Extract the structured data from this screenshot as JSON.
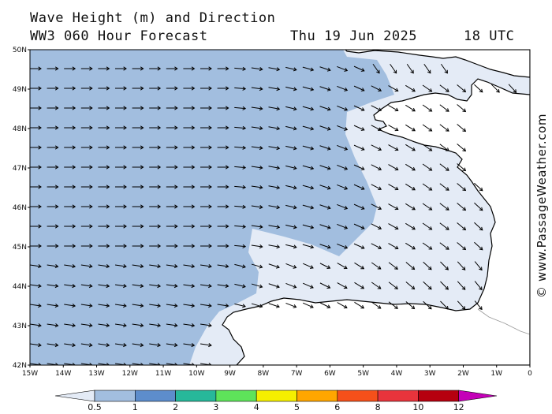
{
  "header": {
    "title": "Wave Height (m) and Direction",
    "subtitle": "WW3 060 Hour Forecast",
    "date": "Thu 19 Jun 2025",
    "time": "18 UTC"
  },
  "credit": "© www.PassageWeather.com",
  "axes": {
    "lat_labels": [
      "50N",
      "49N",
      "48N",
      "47N",
      "46N",
      "45N",
      "44N",
      "43N",
      "42N"
    ],
    "lon_labels": [
      "15W",
      "14W",
      "13W",
      "12W",
      "11W",
      "10W",
      "9W",
      "8W",
      "7W",
      "6W",
      "5W",
      "4W",
      "3W",
      "2W",
      "1W",
      "0"
    ],
    "lat_range": [
      42,
      50
    ],
    "lon_range": [
      -15,
      0
    ]
  },
  "legend": {
    "ticks": [
      "0.5",
      "1",
      "2",
      "3",
      "4",
      "5",
      "6",
      "8",
      "10",
      "12"
    ],
    "colors": [
      "#e4ebf6",
      "#a2bedf",
      "#5d8dcc",
      "#27b89a",
      "#5ee35a",
      "#f5ef00",
      "#ffa600",
      "#f5501a",
      "#e8343c",
      "#b6000f",
      "#c400b8"
    ]
  },
  "colors": {
    "band_0_5_1": "#e4ebf6",
    "band_1_2": "#a2bedf",
    "land": "#ffffff",
    "coast": "#000000"
  },
  "field": {
    "direction": "predominantly eastward offshore, turning south-eastward into the Bay of Biscay"
  }
}
